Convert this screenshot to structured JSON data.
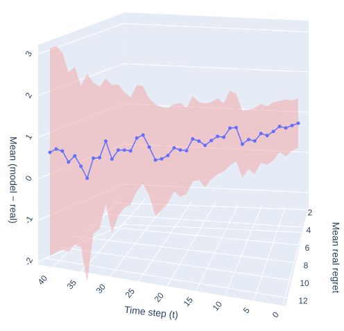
{
  "chart_data": {
    "type": "line3d",
    "xaxis_title": "Time step (t)",
    "yaxis_title": "Mean real regret",
    "zaxis_title": "Mean (model − real)",
    "xlim": [
      0,
      40
    ],
    "xticks": [
      0,
      5,
      10,
      15,
      20,
      25,
      30,
      35,
      40
    ],
    "ylim": [
      1,
      13
    ],
    "yticks": [
      2,
      4,
      6,
      8,
      10,
      12
    ],
    "zlim": [
      -2.5,
      3.3
    ],
    "zticks": [
      -2,
      -1,
      0,
      1,
      2,
      3
    ],
    "grid": true,
    "x": [
      40,
      39,
      38,
      37,
      36,
      35,
      34,
      33,
      32,
      31,
      30,
      29,
      28,
      27,
      26,
      25,
      24,
      23,
      22,
      21,
      20,
      19,
      18,
      17,
      16,
      15,
      14,
      13,
      12,
      11,
      10,
      9,
      8,
      7,
      6,
      5,
      4,
      3,
      2,
      1,
      0
    ],
    "series": [
      {
        "color": "#636efa",
        "band_color": "#f4a3a3",
        "values": [
          0.7,
          0.78,
          0.73,
          0.46,
          0.61,
          0.35,
          0.05,
          0.55,
          0.56,
          0.98,
          0.52,
          0.75,
          0.75,
          0.73,
          1.07,
          1.15,
          0.83,
          0.48,
          0.51,
          0.6,
          0.81,
          0.75,
          0.73,
          1.06,
          1.0,
          0.88,
          1.02,
          1.14,
          1.12,
          1.39,
          1.41,
          0.92,
          1.06,
          1.02,
          1.25,
          1.19,
          1.32,
          1.48,
          1.44,
          1.52,
          1.6
        ],
        "errors": [
          2.5,
          2.5,
          2.4,
          2.2,
          2.2,
          2.0,
          2.6,
          1.9,
          1.8,
          1.6,
          1.9,
          1.7,
          1.5,
          1.4,
          1.4,
          1.3,
          1.3,
          1.5,
          1.4,
          1.3,
          1.2,
          1.3,
          1.2,
          1.2,
          1.1,
          1.2,
          1.1,
          1.1,
          1.0,
          1.1,
          1.0,
          1.0,
          0.9,
          1.0,
          0.9,
          0.9,
          0.9,
          0.8,
          0.9,
          0.8,
          0.8
        ]
      }
    ]
  }
}
